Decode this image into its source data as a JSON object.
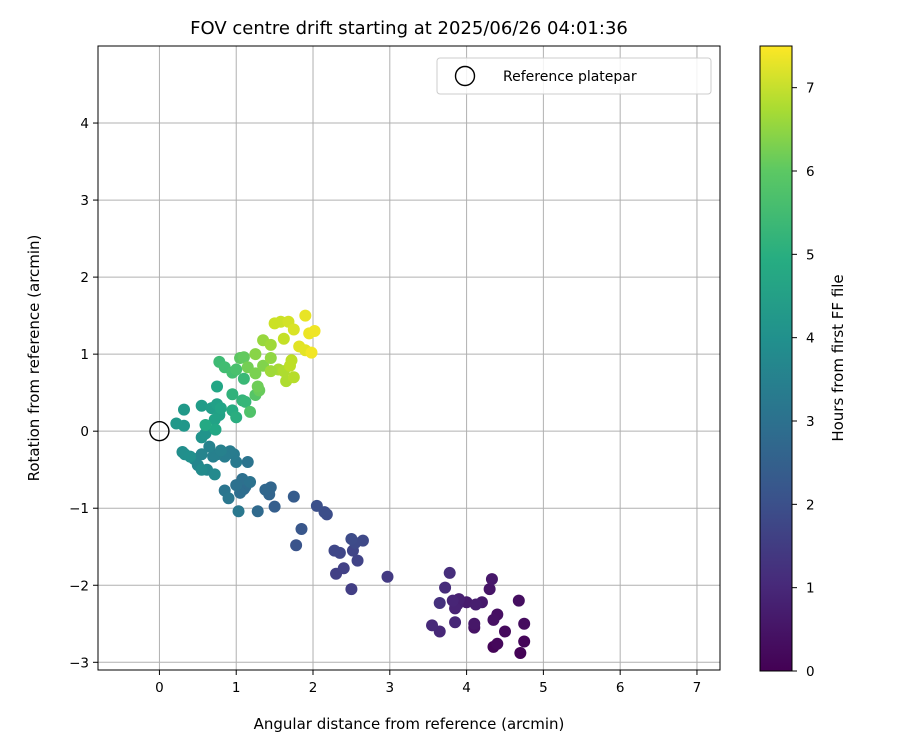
{
  "chart_data": {
    "type": "scatter",
    "title": "FOV centre drift starting at 2025/06/26 04:01:36",
    "xlabel": "Angular distance from reference (arcmin)",
    "ylabel": "Rotation from reference (arcmin)",
    "colorbar_label": "Hours from first FF file",
    "xlim": [
      -0.8,
      7.3
    ],
    "ylim": [
      -3.1,
      5.0
    ],
    "xticks": [
      "0",
      "1",
      "2",
      "3",
      "4",
      "5",
      "6",
      "7"
    ],
    "yticks": [
      "−3",
      "−2",
      "−1",
      "0",
      "1",
      "2",
      "3",
      "4"
    ],
    "colorbar_ticks": [
      "0",
      "1",
      "2",
      "3",
      "4",
      "5",
      "6",
      "7"
    ],
    "colorbar_range": [
      0,
      7.5
    ],
    "colormap": "viridis",
    "grid": true,
    "legend": {
      "position": "top-right",
      "entries": [
        {
          "label": "Reference platepar",
          "marker": "hollow-circle",
          "color": "#000000"
        }
      ]
    },
    "reference_point": {
      "x": 0,
      "y": 0
    },
    "points": [
      [
        4.7,
        -2.88,
        0.05
      ],
      [
        4.35,
        -2.8,
        0.1
      ],
      [
        4.75,
        -2.73,
        0.15
      ],
      [
        4.4,
        -2.76,
        0.2
      ],
      [
        4.5,
        -2.6,
        0.25
      ],
      [
        4.75,
        -2.5,
        0.3
      ],
      [
        4.68,
        -2.2,
        0.35
      ],
      [
        4.4,
        -2.38,
        0.4
      ],
      [
        4.35,
        -2.45,
        0.45
      ],
      [
        4.1,
        -2.55,
        0.5
      ],
      [
        4.3,
        -2.05,
        0.55
      ],
      [
        4.1,
        -2.5,
        0.6
      ],
      [
        4.33,
        -1.92,
        0.65
      ],
      [
        4.2,
        -2.22,
        0.7
      ],
      [
        4.0,
        -2.22,
        0.75
      ],
      [
        4.12,
        -2.25,
        0.8
      ],
      [
        3.88,
        -2.25,
        0.85
      ],
      [
        3.9,
        -2.18,
        0.9
      ],
      [
        3.85,
        -2.3,
        0.95
      ],
      [
        3.82,
        -2.2,
        1.0
      ],
      [
        3.85,
        -2.48,
        1.05
      ],
      [
        3.65,
        -2.6,
        1.1
      ],
      [
        3.55,
        -2.52,
        1.15
      ],
      [
        3.72,
        -2.03,
        1.2
      ],
      [
        3.78,
        -1.84,
        1.25
      ],
      [
        3.65,
        -2.23,
        1.35
      ],
      [
        2.97,
        -1.89,
        1.6
      ],
      [
        2.5,
        -2.05,
        1.7
      ],
      [
        2.3,
        -1.85,
        1.75
      ],
      [
        2.4,
        -1.78,
        1.8
      ],
      [
        2.58,
        -1.68,
        1.85
      ],
      [
        2.52,
        -1.55,
        1.9
      ],
      [
        2.35,
        -1.58,
        1.95
      ],
      [
        2.28,
        -1.55,
        2.0
      ],
      [
        2.65,
        -1.42,
        2.05
      ],
      [
        2.55,
        -1.45,
        2.1
      ],
      [
        2.5,
        -1.4,
        2.15
      ],
      [
        2.18,
        -1.08,
        2.2
      ],
      [
        2.15,
        -1.05,
        2.25
      ],
      [
        2.05,
        -0.97,
        2.3
      ],
      [
        1.78,
        -1.48,
        2.45
      ],
      [
        1.85,
        -1.27,
        2.55
      ],
      [
        1.75,
        -0.85,
        2.75
      ],
      [
        1.5,
        -0.98,
        2.85
      ],
      [
        1.43,
        -0.82,
        3.05
      ],
      [
        1.45,
        -0.73,
        3.1
      ],
      [
        1.38,
        -0.76,
        3.15
      ],
      [
        1.28,
        -1.04,
        3.25
      ],
      [
        1.1,
        -0.75,
        3.3
      ],
      [
        1.12,
        -0.72,
        3.35
      ],
      [
        1.05,
        -0.8,
        3.4
      ],
      [
        1.08,
        -0.62,
        3.45
      ],
      [
        1.0,
        -0.7,
        3.5
      ],
      [
        1.18,
        -0.66,
        3.55
      ],
      [
        1.15,
        -0.4,
        3.6
      ],
      [
        0.85,
        -0.77,
        3.65
      ],
      [
        0.9,
        -0.87,
        3.7
      ],
      [
        1.03,
        -1.04,
        3.75
      ],
      [
        1.0,
        -0.4,
        3.8
      ],
      [
        0.97,
        -0.3,
        3.85
      ],
      [
        0.92,
        -0.26,
        3.9
      ],
      [
        0.85,
        -0.33,
        3.95
      ],
      [
        0.75,
        -0.3,
        4.0
      ],
      [
        0.7,
        -0.33,
        4.05
      ],
      [
        0.8,
        -0.25,
        4.1
      ],
      [
        0.65,
        -0.2,
        4.15
      ],
      [
        0.55,
        -0.3,
        4.2
      ],
      [
        0.45,
        -0.36,
        4.25
      ],
      [
        0.5,
        -0.44,
        4.3
      ],
      [
        0.62,
        -0.5,
        4.35
      ],
      [
        0.72,
        -0.56,
        4.45
      ],
      [
        0.55,
        -0.5,
        4.5
      ],
      [
        0.3,
        -0.27,
        4.6
      ],
      [
        0.33,
        -0.3,
        4.65
      ],
      [
        0.4,
        -0.33,
        4.7
      ],
      [
        0.55,
        -0.08,
        4.8
      ],
      [
        0.6,
        -0.03,
        4.85
      ],
      [
        0.32,
        0.07,
        4.95
      ],
      [
        0.22,
        0.1,
        5.0
      ],
      [
        0.32,
        0.28,
        5.05
      ],
      [
        0.55,
        0.33,
        5.15
      ],
      [
        0.68,
        0.3,
        5.2
      ],
      [
        0.75,
        0.35,
        5.3
      ],
      [
        0.78,
        0.21,
        5.35
      ],
      [
        0.72,
        0.15,
        5.4
      ],
      [
        0.8,
        0.3,
        5.45
      ],
      [
        0.75,
        0.58,
        5.55
      ],
      [
        0.73,
        0.02,
        5.6
      ],
      [
        0.6,
        0.08,
        5.65
      ],
      [
        0.95,
        0.27,
        5.7
      ],
      [
        1.0,
        0.18,
        5.75
      ],
      [
        0.95,
        0.48,
        5.85
      ],
      [
        1.08,
        0.4,
        5.9
      ],
      [
        1.12,
        0.38,
        5.95
      ],
      [
        1.1,
        0.68,
        6.0
      ],
      [
        0.78,
        0.9,
        6.05
      ],
      [
        0.85,
        0.83,
        6.1
      ],
      [
        0.95,
        0.76,
        6.15
      ],
      [
        1.0,
        0.8,
        6.2
      ],
      [
        1.18,
        0.25,
        6.25
      ],
      [
        1.25,
        0.47,
        6.3
      ],
      [
        1.05,
        0.95,
        6.35
      ],
      [
        1.1,
        0.96,
        6.4
      ],
      [
        1.3,
        0.53,
        6.45
      ],
      [
        1.28,
        0.58,
        6.5
      ],
      [
        1.15,
        0.83,
        6.55
      ],
      [
        1.25,
        0.75,
        6.6
      ],
      [
        1.35,
        0.85,
        6.65
      ],
      [
        1.25,
        1.0,
        6.7
      ],
      [
        1.45,
        0.95,
        6.75
      ],
      [
        1.35,
        1.18,
        6.8
      ],
      [
        1.45,
        1.12,
        6.85
      ],
      [
        1.55,
        0.8,
        6.9
      ],
      [
        1.65,
        0.65,
        6.95
      ],
      [
        1.75,
        0.7,
        7.0
      ],
      [
        1.72,
        0.92,
        7.05
      ],
      [
        1.62,
        1.2,
        7.1
      ],
      [
        1.58,
        1.42,
        7.15
      ],
      [
        1.68,
        1.42,
        7.2
      ],
      [
        1.75,
        1.32,
        7.25
      ],
      [
        1.82,
        1.1,
        7.3
      ],
      [
        1.9,
        1.05,
        7.32
      ],
      [
        1.9,
        1.5,
        7.35
      ],
      [
        1.95,
        1.27,
        7.38
      ],
      [
        2.02,
        1.3,
        7.4
      ],
      [
        1.98,
        1.02,
        7.42
      ],
      [
        1.5,
        1.4,
        7.15
      ],
      [
        1.62,
        0.78,
        6.95
      ],
      [
        1.7,
        0.85,
        7.05
      ],
      [
        1.45,
        0.78,
        6.85
      ]
    ]
  }
}
